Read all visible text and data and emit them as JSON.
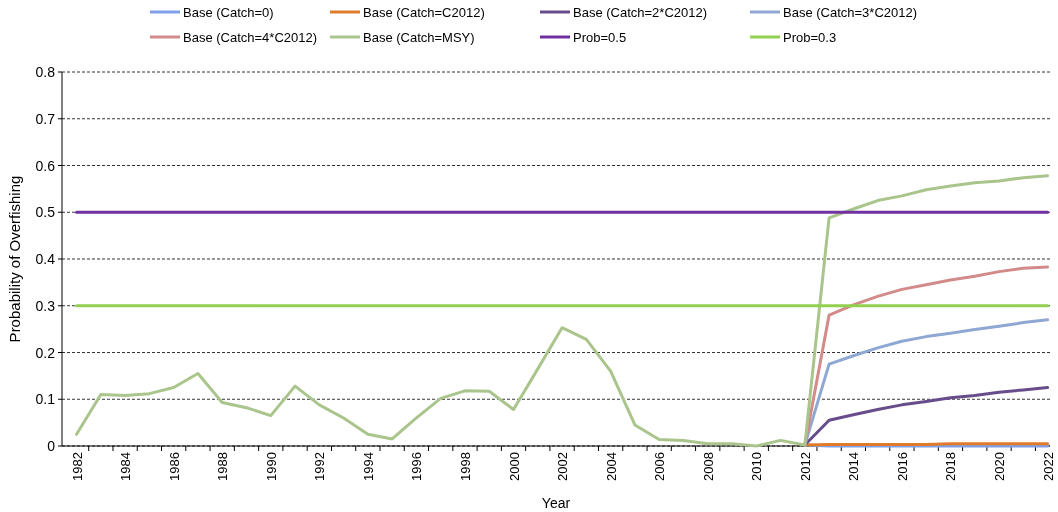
{
  "chart_data": {
    "type": "line",
    "xlabel": "Year",
    "ylabel": "Probability of Overfishing",
    "x": [
      1982,
      1983,
      1984,
      1985,
      1986,
      1987,
      1988,
      1989,
      1990,
      1991,
      1992,
      1993,
      1994,
      1995,
      1996,
      1997,
      1998,
      1999,
      2000,
      2001,
      2002,
      2003,
      2004,
      2005,
      2006,
      2007,
      2008,
      2009,
      2010,
      2011,
      2012,
      2013,
      2014,
      2015,
      2016,
      2017,
      2018,
      2019,
      2020,
      2021,
      2022
    ],
    "xlim": [
      1981.4,
      2022.1
    ],
    "xticks": [
      1982,
      1984,
      1986,
      1988,
      1990,
      1992,
      1994,
      1996,
      1998,
      2000,
      2002,
      2004,
      2006,
      2008,
      2010,
      2012,
      2014,
      2016,
      2018,
      2020,
      2022
    ],
    "ylim": [
      0,
      0.8
    ],
    "yticks": [
      0,
      0.1,
      0.2,
      0.3,
      0.4,
      0.5,
      0.6,
      0.7,
      0.8
    ],
    "grid": "y",
    "legend": "top",
    "series": [
      {
        "name": "Base (Catch=0)",
        "color": "#7f9fe8",
        "values": [
          null,
          null,
          null,
          null,
          null,
          null,
          null,
          null,
          null,
          null,
          null,
          null,
          null,
          null,
          null,
          null,
          null,
          null,
          null,
          null,
          null,
          null,
          null,
          null,
          null,
          null,
          null,
          null,
          null,
          null,
          0.002,
          0,
          0,
          0,
          0,
          0,
          0,
          0,
          0,
          0,
          0
        ]
      },
      {
        "name": "Base (Catch=C2012)",
        "color": "#e07b2a",
        "values": [
          null,
          null,
          null,
          null,
          null,
          null,
          null,
          null,
          null,
          null,
          null,
          null,
          null,
          null,
          null,
          null,
          null,
          null,
          null,
          null,
          null,
          null,
          null,
          null,
          null,
          null,
          null,
          null,
          null,
          null,
          0.002,
          0.003,
          0.003,
          0.003,
          0.003,
          0.003,
          0.005,
          0.005,
          0.005,
          0.005,
          0.005
        ]
      },
      {
        "name": "Base (Catch=2*C2012)",
        "color": "#674c8c",
        "values": [
          null,
          null,
          null,
          null,
          null,
          null,
          null,
          null,
          null,
          null,
          null,
          null,
          null,
          null,
          null,
          null,
          null,
          null,
          null,
          null,
          null,
          null,
          null,
          null,
          null,
          null,
          null,
          null,
          null,
          null,
          0.002,
          0.055,
          0.067,
          0.078,
          0.088,
          0.095,
          0.103,
          0.108,
          0.115,
          0.12,
          0.125
        ]
      },
      {
        "name": "Base (Catch=3*C2012)",
        "color": "#8ea8d3",
        "values": [
          null,
          null,
          null,
          null,
          null,
          null,
          null,
          null,
          null,
          null,
          null,
          null,
          null,
          null,
          null,
          null,
          null,
          null,
          null,
          null,
          null,
          null,
          null,
          null,
          null,
          null,
          null,
          null,
          null,
          null,
          0.002,
          0.175,
          0.193,
          0.21,
          0.224,
          0.234,
          0.241,
          0.249,
          0.256,
          0.264,
          0.27
        ]
      },
      {
        "name": "Base (Catch=4*C2012)",
        "color": "#d38b8a",
        "values": [
          null,
          null,
          null,
          null,
          null,
          null,
          null,
          null,
          null,
          null,
          null,
          null,
          null,
          null,
          null,
          null,
          null,
          null,
          null,
          null,
          null,
          null,
          null,
          null,
          null,
          null,
          null,
          null,
          null,
          null,
          0.002,
          0.28,
          0.302,
          0.32,
          0.335,
          0.345,
          0.355,
          0.363,
          0.373,
          0.38,
          0.383
        ]
      },
      {
        "name": "Base (Catch=MSY)",
        "color": "#aac58c",
        "values": [
          0.025,
          0.11,
          0.108,
          0.112,
          0.125,
          0.155,
          0.093,
          0.082,
          0.065,
          0.128,
          0.088,
          0.06,
          0.025,
          0.015,
          0.06,
          0.102,
          0.118,
          0.117,
          0.078,
          0.165,
          0.253,
          0.228,
          0.16,
          0.045,
          0.014,
          0.012,
          0.005,
          0.005,
          0,
          0.012,
          0.002,
          0.488,
          0.507,
          0.525,
          0.535,
          0.548,
          0.556,
          0.563,
          0.567,
          0.574,
          0.578
        ]
      },
      {
        "name": "Prob=0.5",
        "color": "#7030a0",
        "values": [
          0.5,
          0.5,
          0.5,
          0.5,
          0.5,
          0.5,
          0.5,
          0.5,
          0.5,
          0.5,
          0.5,
          0.5,
          0.5,
          0.5,
          0.5,
          0.5,
          0.5,
          0.5,
          0.5,
          0.5,
          0.5,
          0.5,
          0.5,
          0.5,
          0.5,
          0.5,
          0.5,
          0.5,
          0.5,
          0.5,
          0.5,
          0.5,
          0.5,
          0.5,
          0.5,
          0.5,
          0.5,
          0.5,
          0.5,
          0.5,
          0.5
        ]
      },
      {
        "name": "Prob=0.3",
        "color": "#92d050",
        "values": [
          0.3,
          0.3,
          0.3,
          0.3,
          0.3,
          0.3,
          0.3,
          0.3,
          0.3,
          0.3,
          0.3,
          0.3,
          0.3,
          0.3,
          0.3,
          0.3,
          0.3,
          0.3,
          0.3,
          0.3,
          0.3,
          0.3,
          0.3,
          0.3,
          0.3,
          0.3,
          0.3,
          0.3,
          0.3,
          0.3,
          0.3,
          0.3,
          0.3,
          0.3,
          0.3,
          0.3,
          0.3,
          0.3,
          0.3,
          0.3,
          0.3
        ]
      }
    ]
  }
}
